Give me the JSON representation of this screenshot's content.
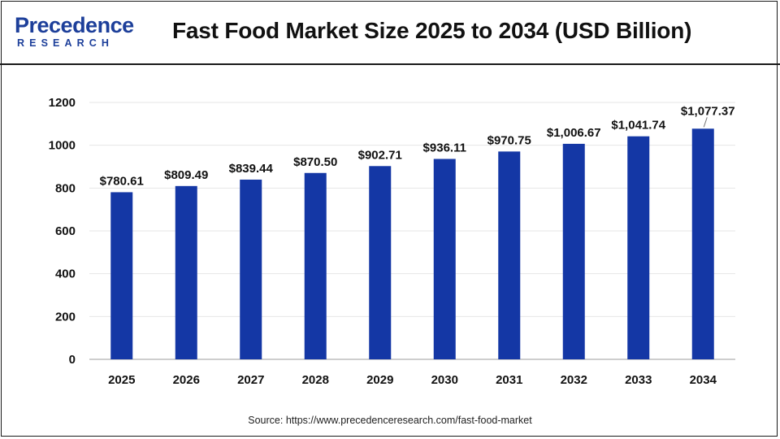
{
  "header": {
    "logo_main": "Precedence",
    "logo_sub": "RESEARCH",
    "title": "Fast Food Market Size 2025 to 2034 (USD Billion)"
  },
  "footer": {
    "source": "Source: https://www.precedenceresearch.com/fast-food-market"
  },
  "colors": {
    "bar": "#1437a5",
    "brand": "#1d3f9a"
  },
  "chart_data": {
    "type": "bar",
    "title": "Fast Food Market Size 2025 to 2034 (USD Billion)",
    "xlabel": "",
    "ylabel": "",
    "categories": [
      "2025",
      "2026",
      "2027",
      "2028",
      "2029",
      "2030",
      "2031",
      "2032",
      "2033",
      "2034"
    ],
    "values": [
      780.61,
      809.49,
      839.44,
      870.5,
      902.71,
      936.11,
      970.75,
      1006.67,
      1041.74,
      1077.37
    ],
    "data_labels": [
      "$780.61",
      "$809.49",
      "$839.44",
      "$870.50",
      "$902.71",
      "$936.11",
      "$970.75",
      "$1,006.67",
      "$1,041.74",
      "$1,077.37"
    ],
    "ylim": [
      0,
      1200
    ],
    "yticks": [
      0,
      200,
      400,
      600,
      800,
      1000,
      1200
    ],
    "grid": true,
    "legend": "none"
  }
}
